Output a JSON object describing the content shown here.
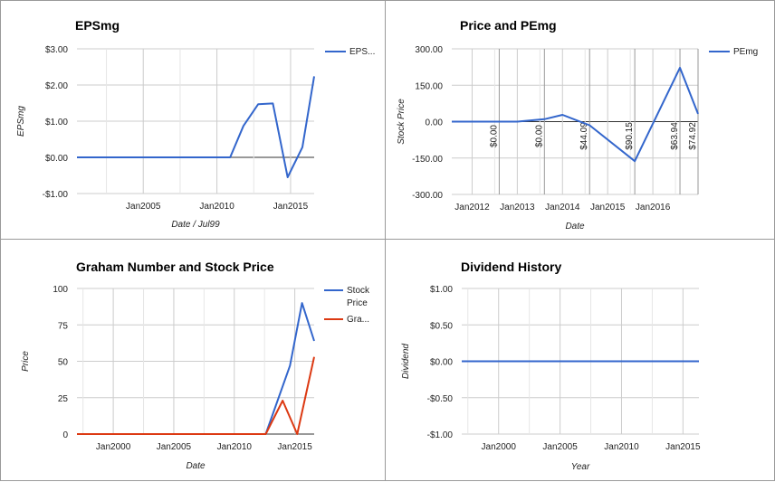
{
  "colors": {
    "blue": "#3366cc",
    "red": "#dc3912",
    "grid": "#cccccc",
    "zero": "#333333",
    "vline": "#999999"
  },
  "charts": [
    {
      "id": "eps",
      "title": "EPSmg",
      "type": "line",
      "xlabel": "Date / Jul99",
      "ylabel": "EPSmg",
      "xlim": [
        2000.5,
        2016.6
      ],
      "ylim": [
        -1,
        3
      ],
      "yticks": [
        3,
        2,
        1,
        0,
        -1
      ],
      "ytick_labels": [
        "$3.00",
        "$2.00",
        "$1.00",
        "$0.00",
        "-$1.00"
      ],
      "xticks": [
        2005,
        2010,
        2015
      ],
      "xtick_labels": [
        "Jan2005",
        "Jan2010",
        "Jan2015"
      ],
      "xgrid_extra": [
        2000,
        2005,
        2010,
        2015
      ],
      "legend": [
        "EPS..."
      ],
      "series": [
        {
          "name": "EPS...",
          "color": "blue",
          "x": [
            2000.5,
            2010.9,
            2011.8,
            2012.8,
            2013.8,
            2014.8,
            2015.8,
            2016.6
          ],
          "y": [
            0,
            0,
            0.87,
            1.47,
            1.49,
            -0.55,
            0.28,
            2.24
          ]
        }
      ]
    },
    {
      "id": "pe",
      "title": "Price and PEmg",
      "type": "line",
      "xlabel": "Date",
      "ylabel": "Stock Price",
      "xlim": [
        2011.55,
        2017.0
      ],
      "ylim": [
        -300,
        300
      ],
      "yticks": [
        300,
        150,
        0,
        -150,
        -300
      ],
      "ytick_labels": [
        "300.00",
        "150.00",
        "0.00",
        "-150.00",
        "-300.00"
      ],
      "xticks": [
        2012,
        2013,
        2014,
        2015,
        2016
      ],
      "xtick_labels": [
        "Jan2012",
        "Jan2013",
        "Jan2014",
        "Jan2015",
        "Jan2016"
      ],
      "legend": [
        "PEmg"
      ],
      "series": [
        {
          "name": "PEmg",
          "color": "blue",
          "x": [
            2011.55,
            2012.6,
            2013.0,
            2013.6,
            2014.0,
            2014.6,
            2015.6,
            2016.6,
            2017.0
          ],
          "y": [
            0,
            0,
            0,
            10,
            28,
            -15,
            -163,
            222,
            32
          ]
        }
      ],
      "annotations": [
        {
          "x": 2012.6,
          "text": "$0.00"
        },
        {
          "x": 2013.6,
          "text": "$0.00"
        },
        {
          "x": 2014.6,
          "text": "$44.09"
        },
        {
          "x": 2015.6,
          "text": "$90.15"
        },
        {
          "x": 2016.6,
          "text": "$63.94"
        },
        {
          "x": 2017.0,
          "text": "$74.92"
        }
      ]
    },
    {
      "id": "graham",
      "title": "Graham Number and Stock Price",
      "type": "line",
      "xlabel": "Date",
      "ylabel": "Price",
      "xlim": [
        1997.0,
        2016.6
      ],
      "ylim": [
        0,
        100
      ],
      "yticks": [
        100,
        75,
        50,
        25,
        0
      ],
      "ytick_labels": [
        "100",
        "75",
        "50",
        "25",
        "0"
      ],
      "xticks": [
        2000,
        2005,
        2010,
        2015
      ],
      "xtick_labels": [
        "Jan2000",
        "Jan2005",
        "Jan2010",
        "Jan2015"
      ],
      "legend": [
        "Stock Price",
        "Gra..."
      ],
      "series": [
        {
          "name": "Stock Price",
          "color": "blue",
          "x": [
            1997.0,
            2012.6,
            2014.6,
            2015.6,
            2016.6
          ],
          "y": [
            0,
            0,
            47,
            90,
            64
          ]
        },
        {
          "name": "Gra...",
          "color": "red",
          "x": [
            1997.0,
            2012.6,
            2014.0,
            2015.2,
            2016.6
          ],
          "y": [
            0,
            0,
            23,
            0,
            53
          ]
        }
      ]
    },
    {
      "id": "div",
      "title": "Dividend History",
      "type": "line",
      "xlabel": "Year",
      "ylabel": "Dividend",
      "xlim": [
        1997.0,
        2016.3
      ],
      "ylim": [
        -1,
        1
      ],
      "yticks": [
        1,
        0.5,
        0,
        -0.5,
        -1
      ],
      "ytick_labels": [
        "$1.00",
        "$0.50",
        "$0.00",
        "-$0.50",
        "-$1.00"
      ],
      "xticks": [
        2000,
        2005,
        2010,
        2015
      ],
      "xtick_labels": [
        "Jan2000",
        "Jan2005",
        "Jan2010",
        "Jan2015"
      ],
      "legend": [],
      "series": [
        {
          "name": "",
          "color": "blue",
          "x": [
            1997.0,
            2016.3
          ],
          "y": [
            0,
            0
          ]
        }
      ]
    }
  ]
}
